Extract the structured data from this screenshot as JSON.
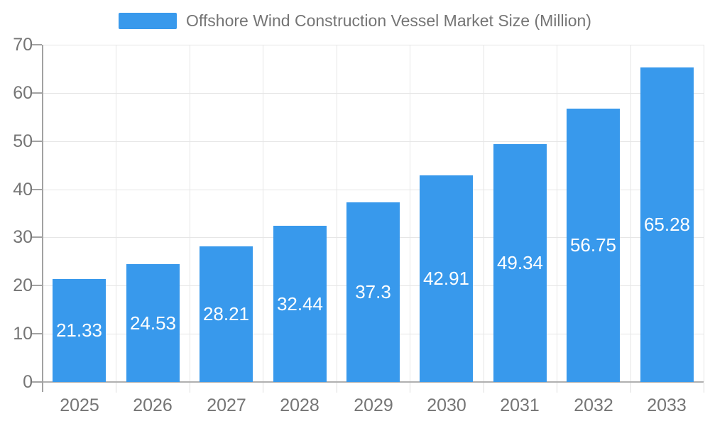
{
  "chart_data": {
    "type": "bar",
    "title": "Offshore Wind Construction Vessel Market Size (Million)",
    "categories": [
      "2025",
      "2026",
      "2027",
      "2028",
      "2029",
      "2030",
      "2031",
      "2032",
      "2033"
    ],
    "values": [
      21.33,
      24.53,
      28.21,
      32.44,
      37.3,
      42.91,
      49.34,
      56.75,
      65.28
    ],
    "xlabel": "",
    "ylabel": "",
    "ylim": [
      0,
      70
    ],
    "yticks": [
      0,
      10,
      20,
      30,
      40,
      50,
      60,
      70
    ],
    "grid": true,
    "legend_position": "top",
    "bar_color": "#3899ec",
    "value_label_color": "#ffffff",
    "axis_text_color": "#757575",
    "grid_color": "#e6e6e6"
  }
}
